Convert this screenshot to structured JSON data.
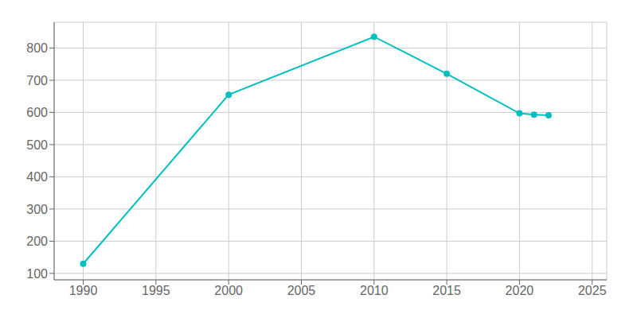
{
  "chart_data": {
    "type": "line",
    "x": [
      1990,
      2000,
      2010,
      2015,
      2020,
      2021,
      2022
    ],
    "values": [
      130,
      655,
      835,
      720,
      597,
      593,
      591
    ],
    "color": "#00BFBF",
    "marker": "circle",
    "xlim": [
      1988,
      2026
    ],
    "ylim": [
      80,
      880
    ],
    "xticks": [
      1990,
      1995,
      2000,
      2005,
      2010,
      2015,
      2020,
      2025
    ],
    "yticks": [
      100,
      200,
      300,
      400,
      500,
      600,
      700,
      800
    ],
    "grid": true
  }
}
